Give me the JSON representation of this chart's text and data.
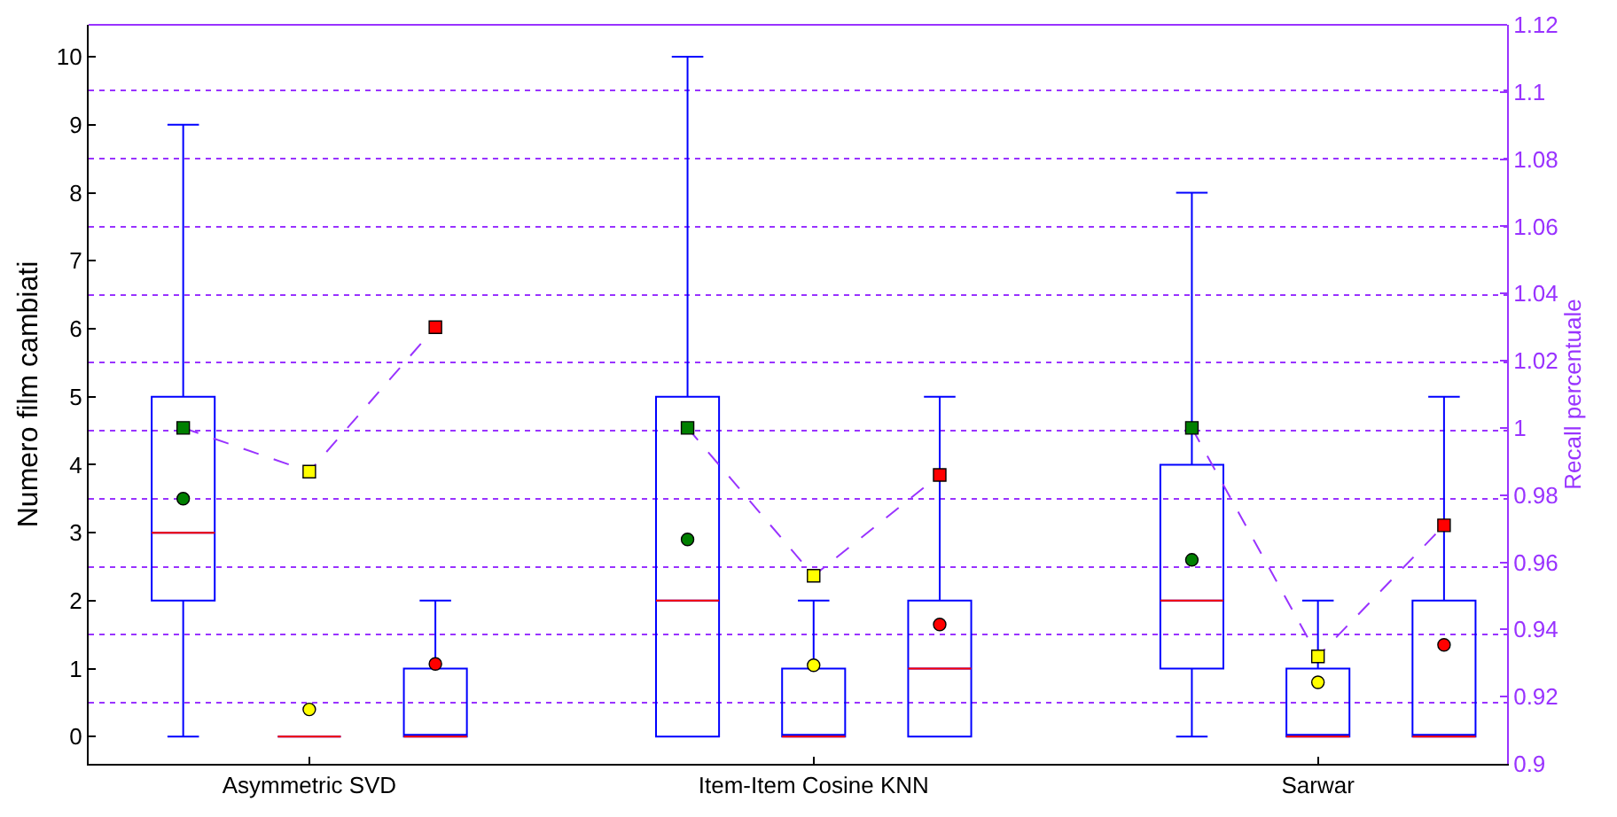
{
  "chart_data": {
    "type": "box",
    "ylabel": "Numero film cambiati",
    "y2label": "Recall percentuale",
    "categories": [
      null,
      "Asymmetric SVD",
      null,
      null,
      null,
      "Item-Item Cosine KNN",
      null,
      null,
      null,
      "Sarwar",
      null
    ],
    "color": "#0000ff",
    "boxes": [
      {
        "low": 0,
        "q1": 2,
        "median": 3,
        "q3": 5,
        "high": 9
      },
      {
        "low": 0,
        "q1": 0,
        "median": 0,
        "q3": 0,
        "high": 0
      },
      {
        "low": 0,
        "q1": 0,
        "median": 0,
        "q3": 1,
        "high": 2
      },
      null,
      {
        "low": 0,
        "q1": 0,
        "median": 2,
        "q3": 5,
        "high": 10
      },
      {
        "low": 0,
        "q1": 0,
        "median": 0,
        "q3": 1,
        "high": 2
      },
      {
        "low": 0,
        "q1": 0,
        "median": 1,
        "q3": 2,
        "high": 5
      },
      null,
      {
        "low": 0,
        "q1": 1,
        "median": 2,
        "q3": 4,
        "high": 8
      },
      {
        "low": 0,
        "q1": 0,
        "median": 0,
        "q3": 1,
        "high": 2
      },
      {
        "low": 0,
        "q1": 0,
        "median": 0,
        "q3": 2,
        "high": 5
      }
    ],
    "series": [
      {
        "type": "scatter",
        "marker": "circle",
        "values": [
          3.5,
          0.4,
          1.07,
          null,
          2.9,
          1.05,
          1.65,
          null,
          2.6,
          0.8,
          1.35
        ],
        "colors": [
          "#008000",
          "#ffff00",
          "#ff0000",
          null,
          "#008000",
          "#ffff00",
          "#ff0000",
          null,
          "#008000",
          "#ffff00",
          "#ff0000"
        ]
      },
      {
        "type": "line",
        "axis": "y2",
        "marker": "square",
        "line_style": "dashed",
        "color": "#9933ff",
        "values": [
          1.0,
          0.987,
          1.03,
          null,
          null,
          null,
          null,
          null,
          null,
          null,
          null
        ],
        "colors": [
          "#008000",
          "#ffff00",
          "#ff0000",
          null,
          null,
          null,
          null,
          null,
          null,
          null,
          null
        ]
      },
      {
        "type": "line",
        "axis": "y2",
        "marker": "square",
        "line_style": "dashed",
        "color": "#9933ff",
        "values": [
          null,
          null,
          null,
          null,
          1.0,
          0.956,
          0.986,
          null,
          null,
          null,
          null
        ],
        "colors": [
          null,
          null,
          null,
          null,
          "#008000",
          "#ffff00",
          "#ff0000",
          null,
          null,
          null,
          null
        ]
      },
      {
        "type": "line",
        "axis": "y2",
        "marker": "square",
        "line_style": "dashed",
        "color": "#9933ff",
        "values": [
          null,
          null,
          null,
          null,
          null,
          null,
          null,
          null,
          1.0,
          0.932,
          0.971
        ],
        "colors": [
          null,
          null,
          null,
          null,
          null,
          null,
          null,
          null,
          "#008000",
          "#ffff00",
          "#ff0000"
        ]
      }
    ],
    "ylim": [
      -0.4,
      10.47
    ],
    "yticks": [
      0,
      {
        "value": 0.5,
        "label": null
      },
      1,
      {
        "value": 1.5,
        "label": null
      },
      2,
      {
        "value": 2.5,
        "label": null
      },
      3,
      {
        "value": 3.5,
        "label": null
      },
      4,
      {
        "value": 4.5,
        "label": null
      },
      5,
      {
        "value": 5.5,
        "label": null
      },
      6,
      {
        "value": 6.5,
        "label": null
      },
      7,
      {
        "value": 7.5,
        "label": null
      },
      8,
      {
        "value": 8.5,
        "label": null
      },
      9,
      {
        "value": 9.5,
        "label": null
      },
      10
    ],
    "y2lim": [
      0.9,
      1.12
    ],
    "y2ticks": [
      0.9,
      0.92,
      0.94,
      0.96,
      0.98,
      1,
      1.02,
      1.04,
      1.06,
      1.08,
      1.1,
      1.12
    ],
    "grid": "y",
    "legend": false
  }
}
